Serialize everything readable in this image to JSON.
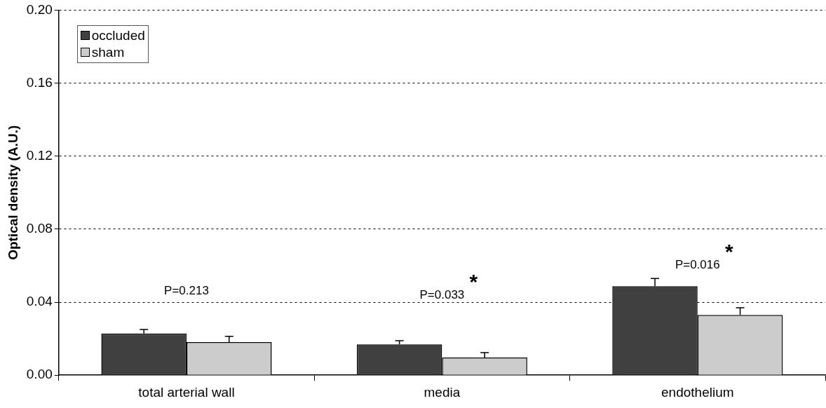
{
  "chart_data": {
    "type": "bar",
    "ylabel": "Optical density (A.U.)",
    "categories": [
      "total arterial wall",
      "media",
      "endothelium"
    ],
    "series": [
      {
        "name": "occluded",
        "color": "#404040",
        "values": [
          0.0228,
          0.0169,
          0.0488
        ],
        "errors": [
          [
            0.0228,
            0.025
          ],
          [
            0.0169,
            0.0189
          ],
          [
            0.0488,
            0.053
          ]
        ]
      },
      {
        "name": "sham",
        "color": "#cccccc",
        "values": [
          0.0181,
          0.0097,
          0.033
        ],
        "errors": [
          [
            0.0181,
            0.0213
          ],
          [
            0.0097,
            0.0124
          ],
          [
            0.033,
            0.0369
          ]
        ]
      }
    ],
    "ylim": [
      0,
      0.2
    ],
    "yticks": [
      {
        "value": 0,
        "label": "0.00"
      },
      {
        "value": 0.04,
        "label": "0.04"
      },
      {
        "value": 0.08,
        "label": "0.08"
      },
      {
        "value": 0.12,
        "label": "0.12"
      },
      {
        "value": 0.16,
        "label": "0.16"
      },
      {
        "value": 0.2,
        "label": "0.20"
      }
    ],
    "grid": "y",
    "legend": "top left",
    "annotations": [
      "P=0.213",
      "P=0.033",
      "*",
      "P=0.016",
      "*"
    ]
  }
}
